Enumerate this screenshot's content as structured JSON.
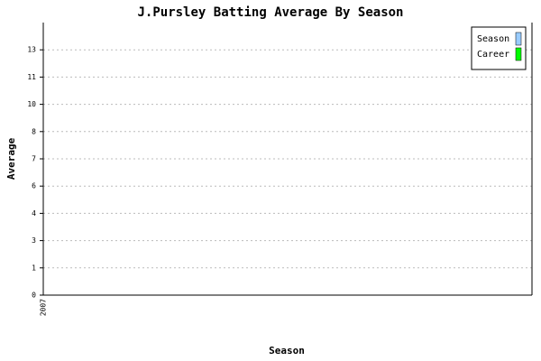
{
  "chart_data": {
    "type": "bar",
    "title": "J.Pursley Batting Average By Season",
    "x_label": "Season",
    "y_label": "Average",
    "categories": [
      "2007"
    ],
    "series": [
      {
        "name": "Season",
        "color": "#99ccff",
        "values": [
          0
        ]
      },
      {
        "name": "Career",
        "color": "#00ff00",
        "values": [
          0
        ]
      }
    ],
    "ylim": [
      0,
      14
    ],
    "yticks": [
      0,
      {
        "value": 1.4,
        "label": "1"
      },
      {
        "value": 2.8,
        "label": "3"
      },
      {
        "value": 4.2,
        "label": "4"
      },
      {
        "value": 5.6,
        "label": "6"
      },
      7,
      {
        "value": 8.4,
        "label": "8"
      },
      {
        "value": 9.8,
        "label": "10"
      },
      {
        "value": 11.2,
        "label": "11"
      },
      {
        "value": 12.6,
        "label": "13"
      }
    ],
    "grid": true,
    "legend": "top-right"
  }
}
